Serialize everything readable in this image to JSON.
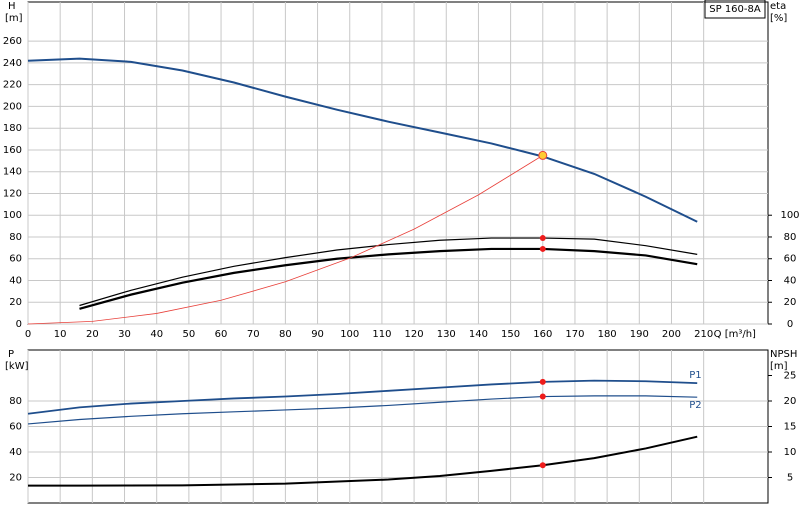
{
  "chart_data": [
    {
      "type": "line",
      "title": "SP 160-8A",
      "x_label": "Q [m³/h]",
      "y_label": "H",
      "y_unit": "[m]",
      "y2_label": "eta",
      "y2_unit": "[%]",
      "xlim": [
        0,
        230
      ],
      "xticks": [
        0,
        10,
        20,
        30,
        40,
        50,
        60,
        70,
        80,
        90,
        100,
        110,
        120,
        130,
        140,
        150,
        160,
        170,
        180,
        190,
        200,
        210
      ],
      "ylim": [
        0,
        296
      ],
      "yticks": [
        0,
        20,
        40,
        60,
        80,
        100,
        120,
        140,
        160,
        180,
        200,
        220,
        240,
        260
      ],
      "y2lim": [
        0,
        296
      ],
      "y2ticks": [
        0,
        20,
        40,
        60,
        80,
        100
      ],
      "grid": true,
      "series": [
        {
          "color": "#1f4e8c",
          "line_width": 2,
          "x": [
            0,
            16,
            32,
            48,
            64,
            80,
            96,
            112,
            128,
            144,
            160,
            176,
            192,
            208
          ],
          "values": [
            242,
            244,
            241,
            233,
            222,
            209,
            197,
            186,
            176,
            166,
            154,
            138,
            117,
            94
          ]
        },
        {
          "color": "#000000",
          "line_width": 1.2,
          "axis": "y2",
          "x": [
            16,
            32,
            48,
            64,
            80,
            96,
            112,
            128,
            144,
            160,
            176,
            192,
            208
          ],
          "values": [
            17,
            31,
            43,
            53,
            61,
            68,
            73,
            77,
            79,
            79,
            78,
            72,
            64
          ]
        },
        {
          "color": "#000000",
          "line_width": 2.2,
          "axis": "y2",
          "x": [
            16,
            32,
            48,
            64,
            80,
            96,
            112,
            128,
            144,
            160,
            176,
            192,
            208
          ],
          "values": [
            14,
            27,
            38,
            47,
            54,
            60,
            64,
            67,
            69,
            69,
            67,
            63,
            55
          ]
        },
        {
          "color": "#e8403a",
          "line_width": 0.8,
          "x": [
            0,
            20,
            40,
            60,
            80,
            100,
            120,
            140,
            160
          ],
          "values": [
            0,
            2.4,
            9.7,
            21.8,
            38.8,
            60.5,
            87.2,
            118.7,
            155
          ]
        }
      ],
      "points": [
        {
          "x": 160,
          "y": 155,
          "color": "#ffcc33"
        },
        {
          "x": 160,
          "y": 79,
          "color": "#ee1c1c",
          "axis": "y2"
        },
        {
          "x": 160,
          "y": 69,
          "color": "#ee1c1c",
          "axis": "y2"
        }
      ]
    },
    {
      "type": "line",
      "y_label": "P",
      "y_unit": "[kW]",
      "y2_label": "NPSH",
      "y2_unit": "[m]",
      "xlim": [
        0,
        230
      ],
      "xticks": [
        0,
        10,
        20,
        30,
        40,
        50,
        60,
        70,
        80,
        90,
        100,
        110,
        120,
        130,
        140,
        150,
        160,
        170,
        180,
        190,
        200,
        210
      ],
      "ylim": [
        0,
        120
      ],
      "yticks": [
        20,
        40,
        60,
        80
      ],
      "y2lim": [
        0,
        30
      ],
      "y2ticks": [
        5,
        10,
        15,
        20,
        25
      ],
      "grid": true,
      "series": [
        {
          "name": "P1",
          "color": "#1f4e8c",
          "line_width": 1.8,
          "x": [
            0,
            16,
            32,
            48,
            64,
            80,
            96,
            112,
            128,
            144,
            160,
            176,
            192,
            208
          ],
          "values": [
            70,
            75,
            78,
            80,
            82,
            83.5,
            85.5,
            88,
            90.5,
            93,
            95,
            96,
            95.5,
            94
          ]
        },
        {
          "name": "P2",
          "color": "#1f4e8c",
          "line_width": 1.2,
          "x": [
            0,
            16,
            32,
            48,
            64,
            80,
            96,
            112,
            128,
            144,
            160,
            176,
            192,
            208
          ],
          "values": [
            62,
            65.5,
            68,
            70,
            71.5,
            73,
            74.5,
            76.5,
            79,
            81.5,
            83.5,
            84,
            84,
            83
          ]
        },
        {
          "color": "#000000",
          "line_width": 2,
          "axis": "y2",
          "x": [
            0,
            16,
            48,
            80,
            112,
            128,
            144,
            160,
            176,
            192,
            208
          ],
          "values": [
            3.4,
            3.4,
            3.45,
            3.8,
            4.6,
            5.3,
            6.3,
            7.4,
            8.8,
            10.7,
            13
          ]
        }
      ],
      "points": [
        {
          "x": 160,
          "y": 95,
          "color": "#ee1c1c"
        },
        {
          "x": 160,
          "y": 83.5,
          "color": "#ee1c1c"
        },
        {
          "x": 160,
          "y": 7.4,
          "color": "#ee1c1c",
          "axis": "y2"
        }
      ]
    }
  ]
}
